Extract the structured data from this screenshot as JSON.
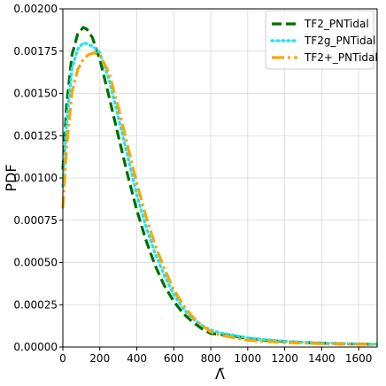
{
  "chart_data": {
    "type": "line",
    "xlabel": "Λ̃",
    "ylabel": "PDF",
    "xlim": [
      0,
      1700
    ],
    "ylim": [
      0,
      0.002
    ],
    "xticks": [
      "0",
      "200",
      "400",
      "600",
      "800",
      "1000",
      "1200",
      "1400",
      "1600"
    ],
    "yticks": [
      "0.00000",
      "0.00025",
      "0.00050",
      "0.00075",
      "0.00100",
      "0.00125",
      "0.00150",
      "0.00175",
      "0.00200"
    ],
    "grid": true,
    "legend_position": "top-right",
    "series": [
      {
        "name": "TF2_PNTidal",
        "color": "#007000",
        "linestyle": "dashed",
        "x": [
          0,
          20,
          50,
          80,
          110,
          130,
          160,
          200,
          250,
          300,
          350,
          400,
          450,
          500,
          550,
          600,
          650,
          700,
          750,
          800,
          850,
          900,
          950,
          1000,
          1100,
          1200,
          1300,
          1400,
          1500,
          1600,
          1700
        ],
        "y": [
          0.00105,
          0.00143,
          0.00173,
          0.00185,
          0.00189,
          0.00188,
          0.00183,
          0.0017,
          0.00148,
          0.00125,
          0.00102,
          0.00081,
          0.00063,
          0.00048,
          0.00036,
          0.00027,
          0.0002,
          0.00015,
          0.00011,
          8e-05,
          7.5e-05,
          7e-05,
          6e-05,
          5e-05,
          4e-05,
          3.2e-05,
          2.7e-05,
          2.3e-05,
          2e-05,
          1.8e-05,
          1.6e-05
        ]
      },
      {
        "name": "TF2g_PNTidal",
        "color": "#22e1f1",
        "linestyle": "dotted",
        "x": [
          0,
          20,
          50,
          80,
          110,
          140,
          170,
          200,
          250,
          300,
          350,
          400,
          450,
          500,
          550,
          600,
          650,
          700,
          750,
          800,
          850,
          900,
          950,
          1000,
          1100,
          1200,
          1300,
          1400,
          1500,
          1600,
          1700
        ],
        "y": [
          0.00095,
          0.00133,
          0.00165,
          0.00176,
          0.0018,
          0.00179,
          0.00177,
          0.00174,
          0.00158,
          0.00136,
          0.00113,
          0.0009,
          0.00071,
          0.00055,
          0.00042,
          0.00031,
          0.00023,
          0.00017,
          0.00013,
          0.0001,
          8.5e-05,
          7.5e-05,
          6.5e-05,
          5.5e-05,
          4.3e-05,
          3.4e-05,
          2.8e-05,
          2.4e-05,
          2.1e-05,
          1.9e-05,
          1.7e-05
        ]
      },
      {
        "name": "TF2+_PNTidal",
        "color": "#f5a800",
        "linestyle": "dashdot",
        "x": [
          0,
          20,
          50,
          80,
          110,
          140,
          170,
          200,
          250,
          300,
          350,
          400,
          450,
          500,
          550,
          600,
          650,
          700,
          750,
          800,
          850,
          900,
          950,
          1000,
          1100,
          1200,
          1300,
          1400,
          1500,
          1600,
          1700
        ],
        "y": [
          0.00082,
          0.00118,
          0.00151,
          0.00164,
          0.0017,
          0.00173,
          0.00174,
          0.00173,
          0.00162,
          0.00142,
          0.00119,
          0.00097,
          0.00077,
          0.0006,
          0.00046,
          0.00034,
          0.00025,
          0.00018,
          0.00013,
          9e-05,
          7e-05,
          6e-05,
          5e-05,
          4e-05,
          3.3e-05,
          2.7e-05,
          2.3e-05,
          2e-05,
          1.8e-05,
          1.6e-05,
          1.5e-05
        ]
      }
    ]
  }
}
